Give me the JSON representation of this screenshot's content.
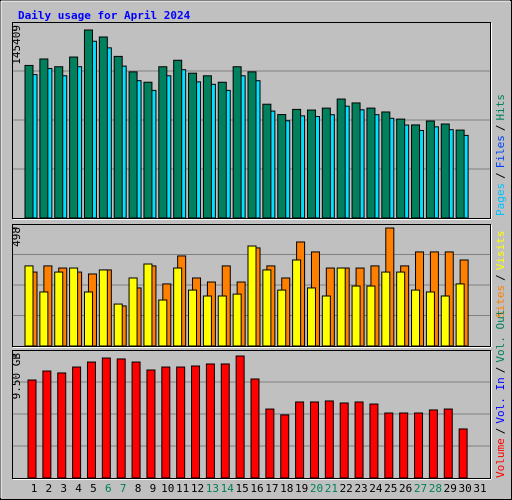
{
  "legend_separator": "/",
  "chart_data": [
    {
      "type": "bar",
      "title": "Daily usage for April 2024",
      "ylim": [
        0,
        145409
      ],
      "yticks": [
        145409
      ],
      "series": [
        {
          "name": "Pages",
          "color": "#00e0ff",
          "values": [
            110900,
            115600,
            110000,
            117000,
            136700,
            131600,
            117500,
            106200,
            98700,
            110000,
            114700,
            105300,
            103400,
            98700,
            110000,
            106200,
            82700,
            75200,
            79000,
            78500,
            79900,
            86500,
            83700,
            79900,
            77100,
            71900,
            67700,
            70500,
            68300,
            63900,
            null
          ]
        },
        {
          "name": "Files",
          "color": "#0040ff",
          "values": [
            null,
            null,
            null,
            null,
            null,
            null,
            null,
            null,
            null,
            null,
            null,
            null,
            null,
            null,
            null,
            null,
            null,
            null,
            null,
            null,
            null,
            null,
            null,
            null,
            null,
            null,
            null,
            null,
            null,
            null,
            null
          ]
        },
        {
          "name": "Hits",
          "color": "#00805c",
          "values": [
            118000,
            123000,
            117000,
            124500,
            145409,
            140000,
            125000,
            113000,
            105000,
            117000,
            122000,
            112000,
            110000,
            105000,
            117000,
            113000,
            88000,
            80000,
            84000,
            83500,
            85000,
            92000,
            89000,
            85000,
            82000,
            76500,
            72000,
            75000,
            72700,
            68000,
            null
          ]
        }
      ]
    },
    {
      "type": "bar",
      "ylim": [
        0,
        498
      ],
      "yticks": [
        498
      ],
      "series": [
        {
          "name": "Sites",
          "color": "#ff8000",
          "values": [
            312,
            338,
            329,
            312,
            304,
            321,
            169,
            245,
            338,
            262,
            380,
            287,
            270,
            338,
            270,
            414,
            338,
            287,
            439,
            397,
            329,
            329,
            329,
            338,
            498,
            338,
            397,
            397,
            397,
            363,
            null
          ]
        },
        {
          "name": "Visits",
          "color": "#ffff00",
          "values": [
            338,
            228,
            312,
            329,
            228,
            321,
            177,
            287,
            346,
            194,
            329,
            236,
            211,
            211,
            219,
            422,
            321,
            236,
            363,
            245,
            211,
            329,
            253,
            253,
            312,
            312,
            236,
            228,
            211,
            262,
            null
          ]
        }
      ]
    },
    {
      "type": "bar",
      "ylim": [
        0,
        9.5
      ],
      "yticks": [
        {
          "value": 9.5,
          "label": "9.50 GB"
        }
      ],
      "categories": [
        "1",
        "2",
        "3",
        "4",
        "5",
        "6",
        "7",
        "8",
        "9",
        "10",
        "11",
        "12",
        "13",
        "14",
        "15",
        "16",
        "17",
        "18",
        "19",
        "20",
        "21",
        "22",
        "23",
        "24",
        "25",
        "26",
        "27",
        "28",
        "29",
        "30",
        "31"
      ],
      "category_colors": [
        "#000000",
        "#000000",
        "#000000",
        "#000000",
        "#000000",
        "#00805c",
        "#00805c",
        "#000000",
        "#000000",
        "#000000",
        "#000000",
        "#000000",
        "#00805c",
        "#00805c",
        "#000000",
        "#000000",
        "#000000",
        "#000000",
        "#000000",
        "#00805c",
        "#00805c",
        "#000000",
        "#000000",
        "#000000",
        "#000000",
        "#000000",
        "#00805c",
        "#00805c",
        "#000000",
        "#000000",
        "#000000"
      ],
      "series": [
        {
          "name": "Volume",
          "color": "#ff0000",
          "values": [
            7.63,
            8.33,
            8.18,
            8.64,
            9.03,
            9.34,
            9.27,
            9.03,
            8.41,
            8.64,
            8.64,
            8.72,
            8.88,
            8.88,
            9.5,
            7.71,
            5.37,
            4.91,
            5.92,
            5.92,
            6.0,
            5.84,
            5.92,
            5.76,
            5.06,
            5.06,
            5.06,
            5.3,
            5.37,
            3.82,
            null
          ]
        },
        {
          "name": "Vol. In",
          "color": "#0000ff",
          "values": [
            null,
            null,
            null,
            null,
            null,
            null,
            null,
            null,
            null,
            null,
            null,
            null,
            null,
            null,
            null,
            null,
            null,
            null,
            null,
            null,
            null,
            null,
            null,
            null,
            null,
            null,
            null,
            null,
            null,
            null,
            null
          ]
        },
        {
          "name": "Vol. Out",
          "color": "#00805c",
          "values": [
            null,
            null,
            null,
            null,
            null,
            null,
            null,
            null,
            null,
            null,
            null,
            null,
            null,
            null,
            null,
            null,
            null,
            null,
            null,
            null,
            null,
            null,
            null,
            null,
            null,
            null,
            null,
            null,
            null,
            null,
            null
          ]
        }
      ]
    }
  ]
}
